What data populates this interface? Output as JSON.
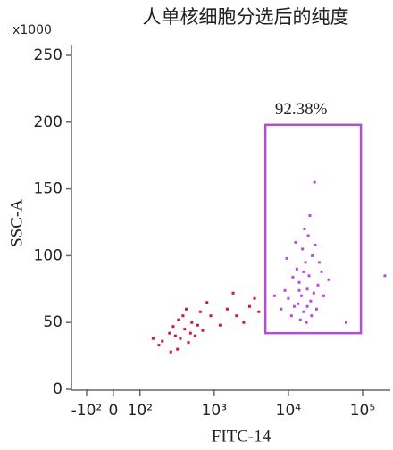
{
  "chart_data": {
    "type": "scatter",
    "title": "人单核细胞分选后的纯度",
    "y_multiplier_label": "x1000",
    "y_label": "SSC-A",
    "x_label": "FITC-14",
    "xscale": "biexponential",
    "xlim": [
      -160,
      230000
    ],
    "xticks": [
      {
        "value": -100,
        "label": "-10²"
      },
      0,
      {
        "value": 100,
        "label": "10²"
      },
      {
        "value": 1000,
        "label": "10³"
      },
      {
        "value": 10000,
        "label": "10⁴"
      },
      {
        "value": 100000,
        "label": "10⁵"
      }
    ],
    "ylim": [
      0,
      250
    ],
    "yticks": [
      0,
      50,
      100,
      150,
      200,
      250
    ],
    "gate": {
      "x": [
        4900,
        95000
      ],
      "y": [
        42,
        198
      ],
      "label": "92.38%",
      "color": "#b050d0"
    },
    "series": [
      {
        "color": "#b84ae0",
        "x": [
          12000,
          15000,
          18000,
          14000,
          20000,
          16000,
          22000,
          13000,
          17000,
          19000,
          11000,
          25000,
          10000,
          21000,
          15500,
          14500,
          24000,
          9000,
          28000,
          18500,
          16500,
          12500,
          30000,
          8000,
          35000,
          20500,
          13500,
          17500,
          26000,
          11500,
          19500,
          22500,
          60000,
          9500,
          23000,
          16000,
          14000,
          18000,
          200000,
          6500
        ],
        "y": [
          62,
          70,
          75,
          80,
          66,
          58,
          72,
          90,
          95,
          85,
          55,
          78,
          68,
          100,
          105,
          52,
          60,
          74,
          88,
          115,
          120,
          110,
          70,
          60,
          82,
          55,
          64,
          50,
          95,
          84,
          130,
          155,
          50,
          98,
          108,
          88,
          74,
          62,
          85,
          70
        ]
      },
      {
        "color": "#d0143c",
        "x": [
          300,
          400,
          350,
          250,
          500,
          450,
          200,
          600,
          380,
          320,
          280,
          420,
          550,
          180,
          700,
          330,
          260,
          480,
          650,
          150,
          900,
          1500,
          2000,
          3000,
          2500,
          1200,
          4000,
          800,
          3500,
          1800
        ],
        "y": [
          40,
          45,
          38,
          42,
          50,
          35,
          36,
          48,
          55,
          30,
          47,
          60,
          40,
          33,
          44,
          52,
          28,
          42,
          58,
          38,
          55,
          60,
          55,
          62,
          50,
          48,
          58,
          65,
          68,
          72
        ]
      }
    ]
  }
}
